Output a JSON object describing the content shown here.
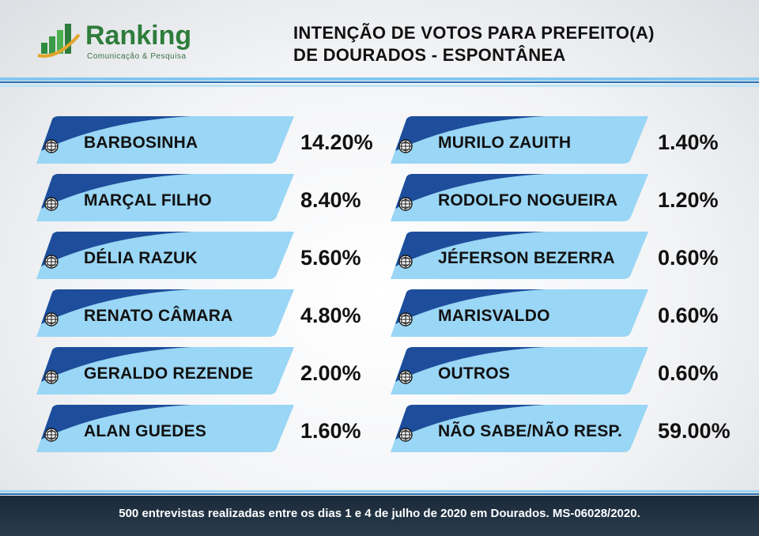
{
  "header": {
    "title_line1": "INTENÇÃO DE VOTOS PARA PREFEITO(A)",
    "title_line2": "DE DOURADOS - ESPONTÂNEA",
    "logo_name": "Ranking",
    "logo_tagline": "Comunicação & Pesquisa"
  },
  "colors": {
    "pill_light": "#9ad6f5",
    "pill_dark": "#1d4d9b",
    "accent_green": "#2e7d3c"
  },
  "chart_data": {
    "type": "table",
    "title": "INTENÇÃO DE VOTOS PARA PREFEITO(A) DE DOURADOS - ESPONTÂNEA",
    "unit": "%",
    "left_column": [
      {
        "label": "BARBOSINHA",
        "value": 14.2,
        "display": "14.20%"
      },
      {
        "label": "MARÇAL FILHO",
        "value": 8.4,
        "display": "8.40%"
      },
      {
        "label": "DÉLIA RAZUK",
        "value": 5.6,
        "display": "5.60%"
      },
      {
        "label": "RENATO CÂMARA",
        "value": 4.8,
        "display": "4.80%"
      },
      {
        "label": "GERALDO REZENDE",
        "value": 2.0,
        "display": "2.00%"
      },
      {
        "label": "ALAN GUEDES",
        "value": 1.6,
        "display": "1.60%"
      }
    ],
    "right_column": [
      {
        "label": "MURILO ZAUITH",
        "value": 1.4,
        "display": "1.40%"
      },
      {
        "label": "RODOLFO NOGUEIRA",
        "value": 1.2,
        "display": "1.20%"
      },
      {
        "label": "JÉFERSON BEZERRA",
        "value": 0.6,
        "display": "0.60%"
      },
      {
        "label": "MARISVALDO",
        "value": 0.6,
        "display": "0.60%"
      },
      {
        "label": "OUTROS",
        "value": 0.6,
        "display": "0.60%"
      },
      {
        "label": "NÃO SABE/NÃO RESP.",
        "value": 59.0,
        "display": "59.00%"
      }
    ]
  },
  "footer": {
    "text": "500 entrevistas realizadas entre os dias 1 e 4 de julho de 2020 em Dourados. MS-06028/2020."
  }
}
